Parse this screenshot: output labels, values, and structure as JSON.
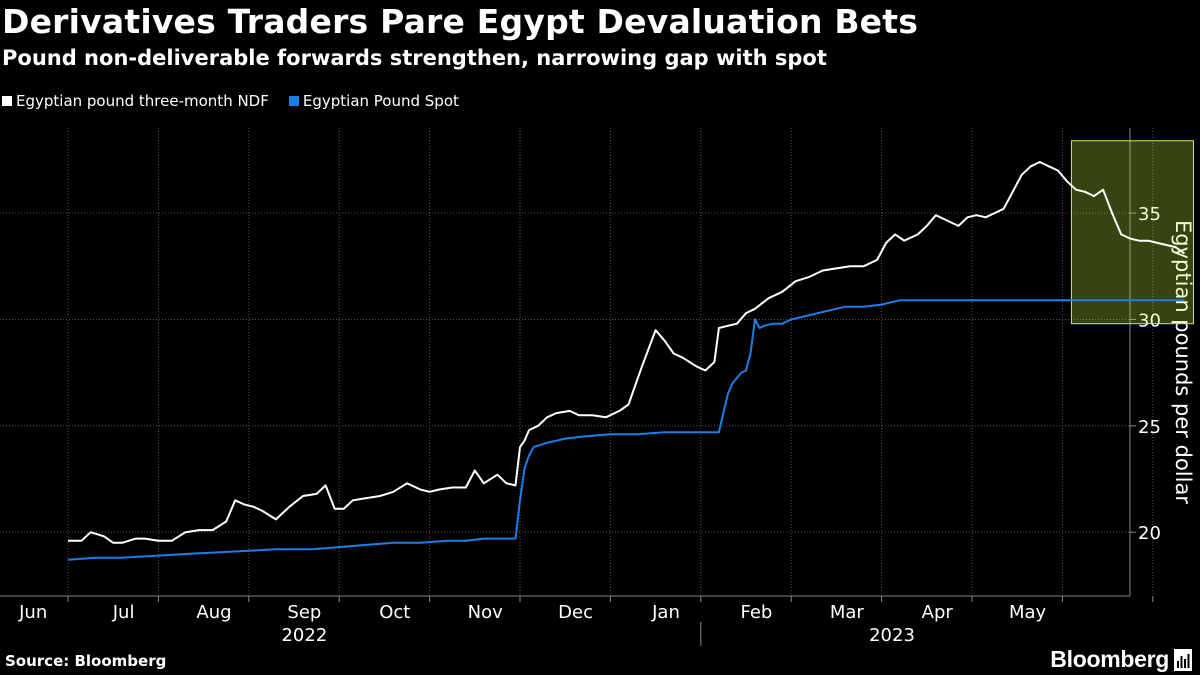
{
  "chart_data": {
    "type": "line",
    "title": "Derivatives Traders Pare Egypt Devaluation Bets",
    "subtitle": "Pound non-deliverable forwards strengthen, narrowing gap with spot",
    "ylabel": "Egyptian pounds per dollar",
    "xlabel": "",
    "ylim": [
      17,
      39
    ],
    "yticks": [
      20,
      25,
      30,
      35
    ],
    "x_units": "months since 2022-06-01",
    "xlim": [
      0,
      12.5
    ],
    "x_ticks": [
      {
        "label": "Jun",
        "x": 0.5
      },
      {
        "label": "Jul",
        "x": 1.5
      },
      {
        "label": "Aug",
        "x": 2.5
      },
      {
        "label": "Sep",
        "x": 3.5
      },
      {
        "label": "Oct",
        "x": 4.5
      },
      {
        "label": "Nov",
        "x": 5.5
      },
      {
        "label": "Dec",
        "x": 6.5
      },
      {
        "label": "Jan",
        "x": 7.5
      },
      {
        "label": "Feb",
        "x": 8.5
      },
      {
        "label": "Mar",
        "x": 9.5
      },
      {
        "label": "Apr",
        "x": 10.5
      },
      {
        "label": "May",
        "x": 11.5
      }
    ],
    "month_boundaries": [
      0,
      1,
      2,
      3,
      4,
      5,
      6,
      7,
      8,
      9,
      10,
      11,
      12
    ],
    "year_labels": [
      {
        "label": "2022",
        "x": 3.5
      },
      {
        "label": "2023",
        "x": 10.0
      }
    ],
    "year_divider_x": 7.0,
    "highlight": {
      "x_start": 11.1,
      "x_end": 12.45,
      "y_start": 29.8,
      "y_end": 38.4,
      "color": "#c5f33c"
    },
    "grid": true,
    "series": [
      {
        "name": "Egyptian pound three-month NDF",
        "color": "#ffffff",
        "x": [
          0.0,
          0.15,
          0.25,
          0.4,
          0.5,
          0.6,
          0.75,
          0.85,
          1.0,
          1.15,
          1.3,
          1.45,
          1.6,
          1.75,
          1.85,
          1.95,
          2.05,
          2.15,
          2.3,
          2.45,
          2.6,
          2.75,
          2.85,
          2.95,
          3.05,
          3.15,
          3.3,
          3.45,
          3.6,
          3.75,
          3.9,
          4.0,
          4.1,
          4.25,
          4.4,
          4.5,
          4.6,
          4.75,
          4.85,
          4.95,
          5.0,
          5.05,
          5.1,
          5.2,
          5.3,
          5.4,
          5.55,
          5.65,
          5.8,
          5.95,
          6.1,
          6.2,
          6.35,
          6.5,
          6.6,
          6.7,
          6.8,
          6.95,
          7.05,
          7.1,
          7.15,
          7.2,
          7.3,
          7.4,
          7.5,
          7.6,
          7.75,
          7.9,
          8.05,
          8.2,
          8.35,
          8.5,
          8.65,
          8.8,
          8.95,
          9.05,
          9.15,
          9.25,
          9.4,
          9.5,
          9.6,
          9.75,
          9.85,
          9.95,
          10.05,
          10.15,
          10.25,
          10.35,
          10.45,
          10.55,
          10.65,
          10.75,
          10.85,
          10.95,
          11.05,
          11.15,
          11.25,
          11.35,
          11.45,
          11.55,
          11.65,
          11.75,
          11.85,
          11.95,
          12.05,
          12.15,
          12.25,
          12.35
        ],
        "values": [
          19.6,
          19.6,
          20.0,
          19.8,
          19.5,
          19.5,
          19.7,
          19.7,
          19.6,
          19.6,
          20.0,
          20.1,
          20.1,
          20.5,
          21.5,
          21.3,
          21.2,
          21.0,
          20.6,
          21.2,
          21.7,
          21.8,
          22.2,
          21.1,
          21.1,
          21.5,
          21.6,
          21.7,
          21.9,
          22.3,
          22.0,
          21.9,
          22.0,
          22.1,
          22.1,
          22.9,
          22.3,
          22.7,
          22.3,
          22.2,
          24.0,
          24.3,
          24.8,
          25.0,
          25.4,
          25.6,
          25.7,
          25.5,
          25.5,
          25.4,
          25.7,
          26.0,
          27.8,
          29.5,
          29.0,
          28.4,
          28.2,
          27.8,
          27.6,
          27.8,
          28.0,
          29.6,
          29.7,
          29.8,
          30.3,
          30.5,
          31.0,
          31.3,
          31.8,
          32.0,
          32.3,
          32.4,
          32.5,
          32.5,
          32.8,
          33.6,
          34.0,
          33.7,
          34.0,
          34.4,
          34.9,
          34.6,
          34.4,
          34.8,
          34.9,
          34.8,
          35.0,
          35.2,
          36.0,
          36.8,
          37.2,
          37.4,
          37.2,
          37.0,
          36.5,
          36.1,
          36.0,
          35.8,
          36.1,
          35.0,
          34.0,
          33.8,
          33.7,
          33.7,
          33.6,
          33.5,
          33.4,
          33.1
        ]
      },
      {
        "name": "Egyptian Pound Spot",
        "color": "#1e7de6",
        "x": [
          0.0,
          0.3,
          0.6,
          1.0,
          1.4,
          1.9,
          2.3,
          2.7,
          3.0,
          3.3,
          3.6,
          3.9,
          4.2,
          4.4,
          4.6,
          4.75,
          4.85,
          4.95,
          5.0,
          5.05,
          5.1,
          5.15,
          5.3,
          5.5,
          5.7,
          6.0,
          6.3,
          6.6,
          6.9,
          7.2,
          7.3,
          7.35,
          7.45,
          7.5,
          7.55,
          7.6,
          7.65,
          7.7,
          7.8,
          7.9,
          8.0,
          8.2,
          8.4,
          8.6,
          8.8,
          9.0,
          9.1,
          9.2,
          9.4,
          9.6,
          9.8,
          10.0,
          10.2,
          10.4,
          10.6,
          10.8,
          11.0,
          11.2,
          11.4,
          11.6,
          11.8,
          12.0,
          12.2,
          12.35
        ],
        "values": [
          18.7,
          18.8,
          18.8,
          18.9,
          19.0,
          19.1,
          19.2,
          19.2,
          19.3,
          19.4,
          19.5,
          19.5,
          19.6,
          19.6,
          19.7,
          19.7,
          19.7,
          19.7,
          21.5,
          23.0,
          23.6,
          24.0,
          24.2,
          24.4,
          24.5,
          24.6,
          24.6,
          24.7,
          24.7,
          24.7,
          26.5,
          27.0,
          27.5,
          27.6,
          28.4,
          30.0,
          29.6,
          29.7,
          29.8,
          29.8,
          30.0,
          30.2,
          30.4,
          30.6,
          30.6,
          30.7,
          30.8,
          30.9,
          30.9,
          30.9,
          30.9,
          30.9,
          30.9,
          30.9,
          30.9,
          30.9,
          30.9,
          30.9,
          30.9,
          30.9,
          30.9,
          30.9,
          30.9,
          30.9
        ]
      }
    ]
  },
  "footer": {
    "source": "Source: Bloomberg",
    "brand": "Bloomberg"
  }
}
